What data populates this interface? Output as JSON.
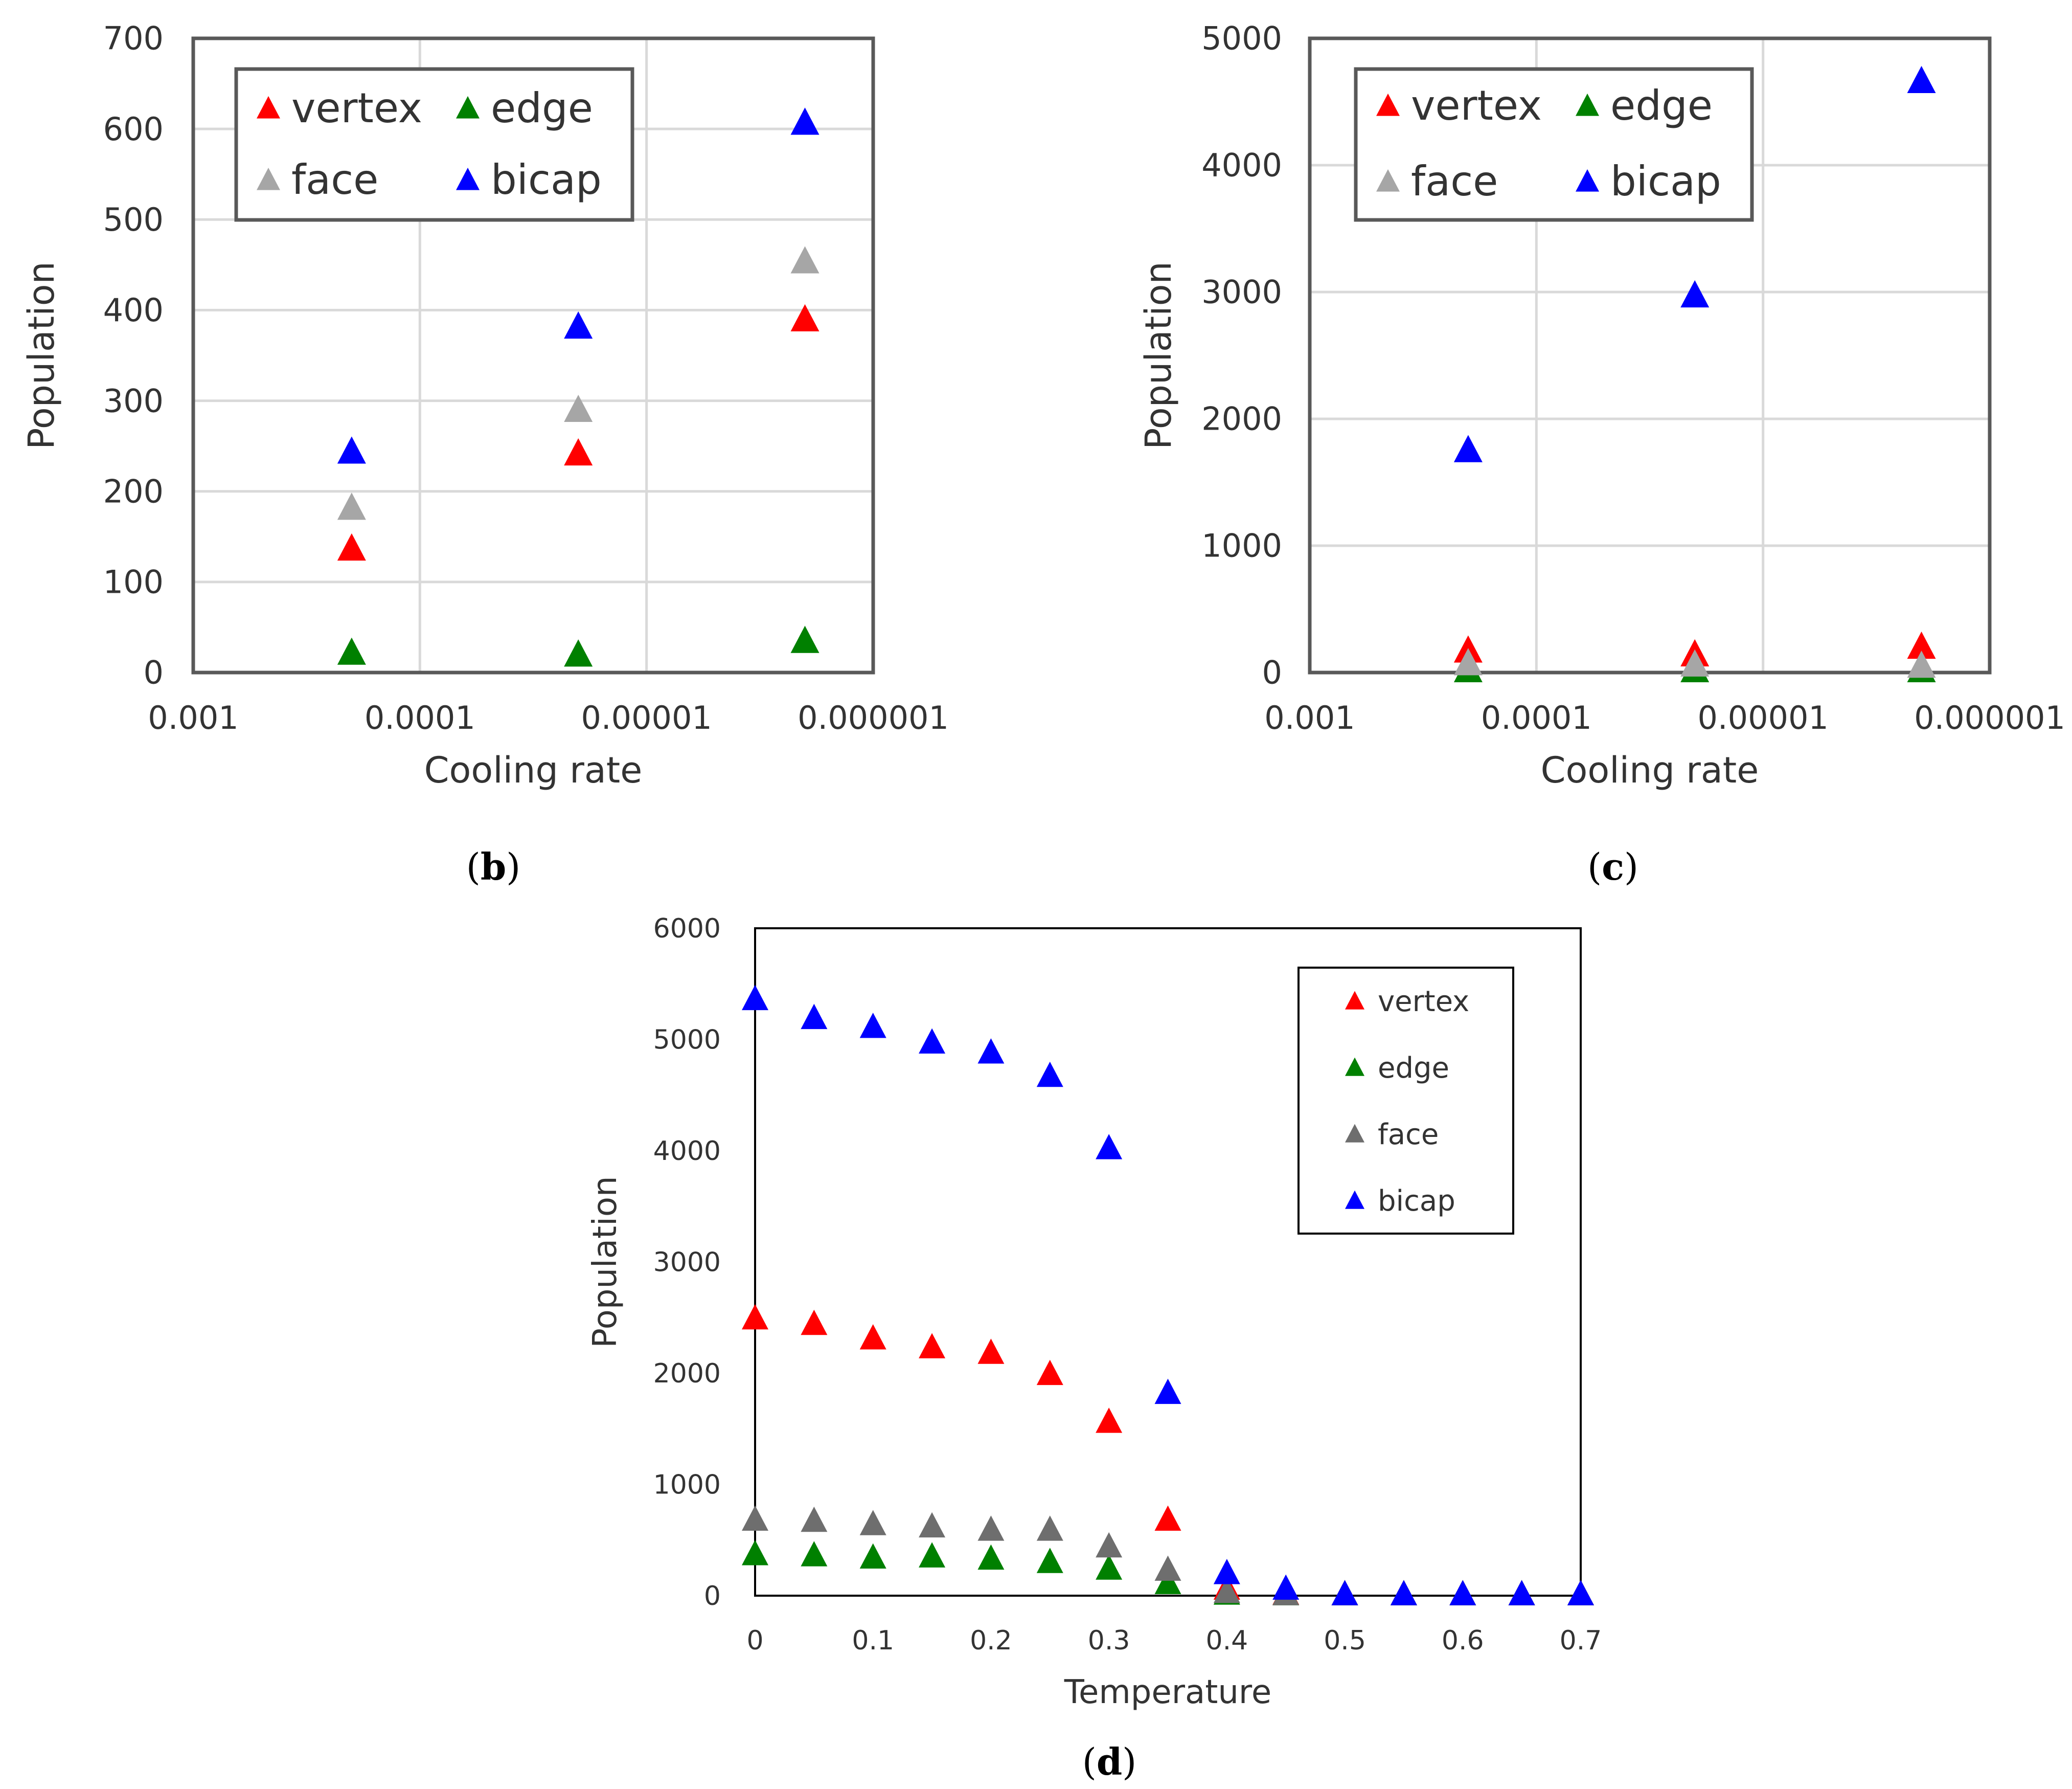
{
  "chart_data": [
    {
      "id": "b",
      "panel_label": "b",
      "type": "scatter",
      "xlabel": "Cooling rate",
      "ylabel": "Population",
      "xscale": "log-reversed",
      "xlim": [
        0.001,
        1e-06
      ],
      "ylim": [
        0,
        700
      ],
      "xticks": [
        0.001,
        0.0001,
        1e-05,
        1e-06
      ],
      "xtick_labels": [
        "0.001",
        "0.0001",
        "0.00001",
        "0.000001"
      ],
      "yticks": [
        0,
        100,
        200,
        300,
        400,
        500,
        600,
        700
      ],
      "ytick_labels": [
        "0",
        "100",
        "200",
        "300",
        "400",
        "500",
        "600",
        "700"
      ],
      "grid": true,
      "legend_position": "top-left",
      "series": [
        {
          "name": "vertex",
          "color": "#ff0000",
          "x": [
            0.0002,
            2e-05,
            2e-06
          ],
          "y": [
            135,
            240,
            388
          ]
        },
        {
          "name": "edge",
          "color": "#008000",
          "x": [
            0.0002,
            2e-05,
            2e-06
          ],
          "y": [
            20,
            18,
            33
          ]
        },
        {
          "name": "face",
          "color": "#a6a6a6",
          "x": [
            0.0002,
            2e-05,
            2e-06
          ],
          "y": [
            180,
            288,
            452
          ]
        },
        {
          "name": "bicap",
          "color": "#0000ff",
          "x": [
            0.0002,
            2e-05,
            2e-06
          ],
          "y": [
            242,
            380,
            605
          ]
        }
      ]
    },
    {
      "id": "c",
      "panel_label": "c",
      "type": "scatter",
      "xlabel": "Cooling rate",
      "ylabel": "Population",
      "xscale": "log-reversed",
      "xlim": [
        0.001,
        1e-06
      ],
      "ylim": [
        0,
        5000
      ],
      "xticks": [
        0.001,
        0.0001,
        1e-05,
        1e-06
      ],
      "xtick_labels": [
        "0.001",
        "0.0001",
        "0.00001",
        "0.000001"
      ],
      "yticks": [
        0,
        1000,
        2000,
        3000,
        4000,
        5000
      ],
      "ytick_labels": [
        "0",
        "1000",
        "2000",
        "3000",
        "4000",
        "5000"
      ],
      "grid": true,
      "legend_position": "top-left",
      "series": [
        {
          "name": "vertex",
          "color": "#ff0000",
          "x": [
            0.0002,
            2e-05,
            2e-06
          ],
          "y": [
            160,
            130,
            190
          ]
        },
        {
          "name": "edge",
          "color": "#008000",
          "x": [
            0.0002,
            2e-05,
            2e-06
          ],
          "y": [
            5,
            5,
            5
          ]
        },
        {
          "name": "face",
          "color": "#a6a6a6",
          "x": [
            0.0002,
            2e-05,
            2e-06
          ],
          "y": [
            60,
            50,
            40
          ]
        },
        {
          "name": "bicap",
          "color": "#0000ff",
          "x": [
            0.0002,
            2e-05,
            2e-06
          ],
          "y": [
            1740,
            2960,
            4650
          ]
        }
      ]
    },
    {
      "id": "d",
      "panel_label": "d",
      "type": "scatter",
      "xlabel": "Temperature",
      "ylabel": "Population",
      "xscale": "linear",
      "xlim": [
        0,
        0.7
      ],
      "ylim": [
        0,
        6000
      ],
      "xticks": [
        0,
        0.1,
        0.2,
        0.3,
        0.4,
        0.5,
        0.6,
        0.7
      ],
      "xtick_labels": [
        "0",
        "0.1",
        "0.2",
        "0.3",
        "0.4",
        "0.5",
        "0.6",
        "0.7"
      ],
      "yticks": [
        0,
        1000,
        2000,
        3000,
        4000,
        5000,
        6000
      ],
      "ytick_labels": [
        "0",
        "1000",
        "2000",
        "3000",
        "4000",
        "5000",
        "6000"
      ],
      "grid": false,
      "legend_position": "top-right",
      "x": [
        0,
        0.05,
        0.1,
        0.15,
        0.2,
        0.25,
        0.3,
        0.35,
        0.4,
        0.45,
        0.5,
        0.55,
        0.6,
        0.65,
        0.7
      ],
      "series": [
        {
          "name": "vertex",
          "color": "#ff0000",
          "y": [
            2480,
            2430,
            2300,
            2220,
            2170,
            1980,
            1550,
            670,
            50,
            5,
            0,
            0,
            0,
            0,
            0
          ]
        },
        {
          "name": "edge",
          "color": "#008000",
          "y": [
            360,
            350,
            330,
            340,
            320,
            290,
            230,
            100,
            5,
            0,
            0,
            0,
            0,
            0,
            0
          ]
        },
        {
          "name": "face",
          "color": "#6e6e6e",
          "y": [
            670,
            660,
            630,
            610,
            580,
            580,
            430,
            220,
            20,
            0,
            0,
            0,
            0,
            0,
            0
          ]
        },
        {
          "name": "bicap",
          "color": "#0000ff",
          "y": [
            5350,
            5180,
            5100,
            4960,
            4870,
            4660,
            4010,
            1810,
            190,
            50,
            0,
            0,
            0,
            0,
            0
          ]
        }
      ]
    }
  ]
}
